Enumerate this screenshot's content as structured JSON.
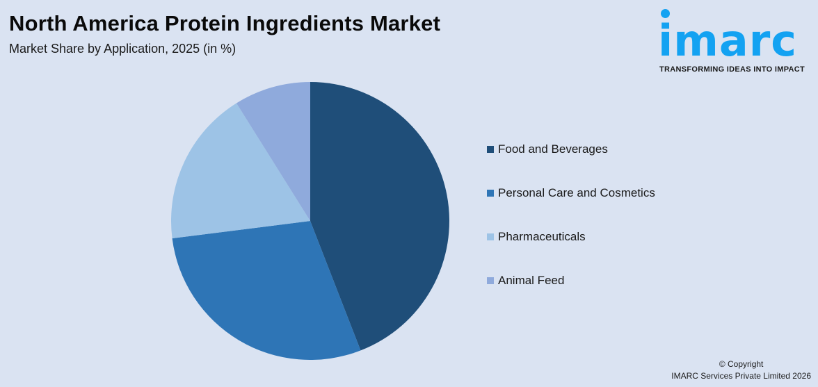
{
  "header": {
    "title": "North America Protein Ingredients Market",
    "subtitle": "Market Share by Application, 2025 (in %)"
  },
  "logo": {
    "text": "imarc",
    "tagline": "TRANSFORMING IDEAS INTO IMPACT",
    "color": "#13a2f2"
  },
  "chart_data": {
    "type": "pie",
    "title": "North America Protein Ingredients Market",
    "subtitle": "Market Share by Application, 2025 (in %)",
    "categories": [
      "Food and Beverages",
      "Personal Care and Cosmetics",
      "Pharmaceuticals",
      "Animal Feed"
    ],
    "values": [
      44.1,
      28.9,
      18.1,
      8.9
    ],
    "colors": [
      "#1f4e79",
      "#2e75b6",
      "#9dc3e6",
      "#8faadc"
    ],
    "start_angle_deg": 0,
    "direction": "clockwise",
    "legend_position": "right",
    "data_labels": false
  },
  "legend": {
    "items": [
      {
        "label": "Food and Beverages",
        "color": "#1f4e79"
      },
      {
        "label": "Personal Care and Cosmetics",
        "color": "#2e75b6"
      },
      {
        "label": "Pharmaceuticals",
        "color": "#9dc3e6"
      },
      {
        "label": "Animal Feed",
        "color": "#8faadc"
      }
    ]
  },
  "footer": {
    "copyright_line1": "© Copyright",
    "copyright_line2": "IMARC Services Private Limited 2026"
  }
}
